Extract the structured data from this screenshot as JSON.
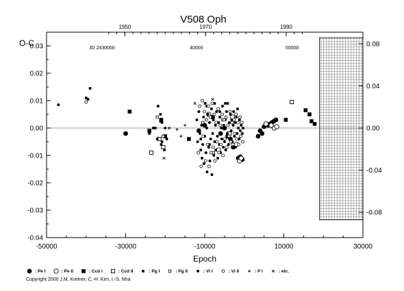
{
  "chart_data": {
    "type": "scatter",
    "title": "V508  Oph",
    "ylabel": "O-C",
    "xlabel": "Epoch",
    "xlim": [
      -50000,
      30000
    ],
    "ylim": [
      -0.04,
      0.035
    ],
    "x_ticks": [
      "-50000",
      "-30000",
      "-10000",
      "10000",
      "30000"
    ],
    "y_ticks": [
      "0.03",
      "0.02",
      "0.01",
      "0.00",
      "-0.01",
      "-0.02",
      "-0.03",
      "-0.04"
    ],
    "top_year_ticks": [
      {
        "label": "1950",
        "epoch": -30200
      },
      {
        "label": "1970",
        "epoch": -9800
      },
      {
        "label": "1990",
        "epoch": 10600
      }
    ],
    "top_jd_ticks": [
      {
        "label": "JD 2430000",
        "epoch": -36000
      },
      {
        "label": "40000",
        "epoch": -12100
      },
      {
        "label": "50000",
        "epoch": 12100
      }
    ],
    "right_axis": {
      "scale_factor": 2.6,
      "ticks": [
        "0.08",
        "0.04",
        "0.00",
        "-0.04",
        "-0.08"
      ]
    },
    "future_region": {
      "from_epoch": 19000,
      "to_epoch": 30000
    },
    "series": [
      {
        "name": "Pe I",
        "symbol": "filled-circle-large",
        "points": [
          [
            -30000,
            -0.002
          ],
          [
            -1500,
            -0.011
          ],
          [
            -1000,
            -0.0105
          ],
          [
            -500,
            -0.0115
          ],
          [
            -2800,
            -0.007
          ],
          [
            -3500,
            -0.004
          ],
          [
            4000,
            -0.001
          ],
          [
            4500,
            -0.002
          ],
          [
            5000,
            0.0005
          ],
          [
            6000,
            0.001
          ],
          [
            6500,
            0.0015
          ],
          [
            7000,
            0.002
          ],
          [
            7500,
            0.0025
          ],
          [
            8000,
            0.003
          ],
          [
            -6000,
            -0.002
          ],
          [
            -8000,
            0.004
          ],
          [
            -10000,
            0.001
          ],
          [
            -5000,
            0.0
          ],
          [
            -4200,
            -0.003
          ],
          [
            -11500,
            -0.001
          ],
          [
            3500,
            -0.003
          ]
        ]
      },
      {
        "name": "Pe II",
        "symbol": "open-circle-large",
        "points": [
          [
            -1200,
            -0.012
          ],
          [
            -800,
            -0.011
          ],
          [
            -2000,
            -0.006
          ],
          [
            5500,
            0.0015
          ],
          [
            6800,
            0.001
          ],
          [
            7600,
            0.0
          ],
          [
            8200,
            0.0005
          ],
          [
            -3000,
            0.004
          ],
          [
            -6500,
            -0.008
          ],
          [
            -9000,
            0.005
          ]
        ]
      },
      {
        "name": "Ccd I",
        "symbol": "filled-square",
        "points": [
          [
            -29000,
            0.006
          ],
          [
            -24000,
            -0.001
          ],
          [
            -21000,
            0.003
          ],
          [
            -20000,
            -0.003
          ],
          [
            -14000,
            -0.004
          ],
          [
            10500,
            0.003
          ],
          [
            15500,
            0.0065
          ],
          [
            17000,
            0.0025
          ],
          [
            17800,
            0.0015
          ],
          [
            16500,
            0.005
          ]
        ]
      },
      {
        "name": "Ccd II",
        "symbol": "open-square",
        "points": [
          [
            -23500,
            -0.009
          ],
          [
            -21500,
            -0.004
          ],
          [
            -20500,
            -0.007
          ],
          [
            12000,
            0.0095
          ],
          [
            -3800,
            -0.002
          ]
        ]
      },
      {
        "name": "Pg I",
        "symbol": "filled-square-small",
        "points": [
          [
            -40000,
            0.011
          ],
          [
            -39000,
            0.0145
          ],
          [
            -22500,
            0.0
          ],
          [
            -21800,
            0.008
          ],
          [
            -21200,
            0.005
          ],
          [
            -20800,
            0.002
          ],
          [
            -21000,
            -0.006
          ],
          [
            -20200,
            -0.008
          ],
          [
            -11000,
            -0.004
          ],
          [
            -9500,
            0.008
          ],
          [
            -8800,
            -0.006
          ],
          [
            -7500,
            0.009
          ],
          [
            -6200,
            0.006
          ],
          [
            -4800,
            0.009
          ]
        ]
      },
      {
        "name": "Pg II",
        "symbol": "open-square-small",
        "points": [
          [
            -22000,
            0.004
          ],
          [
            -20500,
            -0.003
          ],
          [
            -10500,
            0.002
          ],
          [
            -7800,
            -0.009
          ],
          [
            -5500,
            0.003
          ]
        ]
      },
      {
        "name": "Vi I",
        "symbol": "filled-circle-small",
        "points": [
          [
            -47000,
            0.0085
          ],
          [
            -39500,
            0.0105
          ],
          [
            -24000,
            -0.002
          ],
          [
            -23000,
            0.0
          ],
          [
            -22000,
            -0.004
          ],
          [
            -21200,
            0.0025
          ],
          [
            -20800,
            -0.005
          ],
          [
            -20000,
            0.0
          ],
          [
            -19600,
            -0.004
          ],
          [
            -12000,
            0.003
          ],
          [
            -11800,
            -0.005
          ],
          [
            -11500,
            0.006
          ],
          [
            -11200,
            -0.002
          ],
          [
            -11000,
            -0.008
          ],
          [
            -10800,
            0.001
          ],
          [
            -10700,
            -0.011
          ],
          [
            -10500,
            -0.006
          ],
          [
            -10300,
            0.004
          ],
          [
            -10200,
            -0.013
          ],
          [
            -10000,
            -0.003
          ],
          [
            -9900,
            0.009
          ],
          [
            -9700,
            -0.009
          ],
          [
            -9500,
            0.0
          ],
          [
            -9400,
            -0.016
          ],
          [
            -9200,
            0.005
          ],
          [
            -9000,
            -0.007
          ],
          [
            -8800,
            0.002
          ],
          [
            -8700,
            -0.012
          ],
          [
            -8500,
            -0.004
          ],
          [
            -8300,
            0.007
          ],
          [
            -8200,
            -0.017
          ],
          [
            -8000,
            -0.002
          ],
          [
            -7800,
            0.003
          ],
          [
            -7700,
            -0.01
          ],
          [
            -7500,
            -0.005
          ],
          [
            -7300,
            0.001
          ],
          [
            -7200,
            -0.008
          ],
          [
            -7000,
            0.006
          ],
          [
            -6800,
            -0.003
          ],
          [
            -6700,
            -0.011
          ],
          [
            -6500,
            0.002
          ],
          [
            -6300,
            -0.006
          ],
          [
            -6200,
            0.004
          ],
          [
            -6000,
            -0.009
          ],
          [
            -5800,
            0.0
          ],
          [
            -5700,
            -0.004
          ],
          [
            -5500,
            0.008
          ],
          [
            -5300,
            -0.007
          ],
          [
            -5200,
            0.001
          ],
          [
            -5000,
            -0.005
          ],
          [
            -4800,
            0.003
          ],
          [
            -4700,
            -0.008
          ],
          [
            -4500,
            0.006
          ],
          [
            -4300,
            -0.002
          ],
          [
            -4200,
            0.009
          ],
          [
            -4000,
            -0.006
          ],
          [
            -3800,
            0.002
          ],
          [
            -3700,
            -0.004
          ],
          [
            -3500,
            0.005
          ],
          [
            -3300,
            -0.001
          ],
          [
            -3200,
            0.003
          ],
          [
            -3000,
            -0.005
          ],
          [
            -2800,
            0.001
          ],
          [
            -2700,
            0.006
          ],
          [
            -2500,
            -0.003
          ],
          [
            -2300,
            0.002
          ],
          [
            -2200,
            -0.007
          ],
          [
            -2000,
            0.004
          ],
          [
            -1800,
            -0.002
          ],
          [
            -1700,
            0.007
          ],
          [
            -1500,
            0.0
          ],
          [
            -1300,
            -0.004
          ],
          [
            -1200,
            0.003
          ],
          [
            -1000,
            -0.001
          ],
          [
            -800,
            0.001
          ],
          [
            -500,
            -0.002
          ],
          [
            -300,
            0.0
          ]
        ]
      },
      {
        "name": "Vi II",
        "symbol": "open-circle-small",
        "points": [
          [
            -40000,
            0.0095
          ],
          [
            -11600,
            -0.009
          ],
          [
            -11300,
            0.008
          ],
          [
            -10900,
            -0.014
          ],
          [
            -10600,
            0.01
          ],
          [
            -10400,
            -0.003
          ],
          [
            -10100,
            0.006
          ],
          [
            -9800,
            -0.012
          ],
          [
            -9600,
            0.003
          ],
          [
            -9300,
            -0.006
          ],
          [
            -9100,
            0.008
          ],
          [
            -8900,
            -0.014
          ],
          [
            -8600,
            0.004
          ],
          [
            -8400,
            -0.009
          ],
          [
            -8100,
            0.009
          ],
          [
            -7900,
            -0.007
          ],
          [
            -7600,
            0.005
          ],
          [
            -7400,
            -0.012
          ],
          [
            -7100,
            0.002
          ],
          [
            -6900,
            -0.005
          ],
          [
            -6600,
            0.007
          ],
          [
            -6400,
            -0.009
          ],
          [
            -6100,
            0.001
          ],
          [
            -5900,
            -0.006
          ],
          [
            -5600,
            0.005
          ],
          [
            -5400,
            -0.01
          ],
          [
            -5100,
            0.003
          ],
          [
            -4900,
            -0.004
          ],
          [
            -4600,
            0.004
          ],
          [
            -4400,
            -0.007
          ],
          [
            -4100,
            0.001
          ],
          [
            -3900,
            -0.003
          ],
          [
            -3600,
            0.006
          ],
          [
            -3400,
            -0.005
          ],
          [
            -3100,
            0.002
          ],
          [
            -2900,
            -0.006
          ],
          [
            -2600,
            0.003
          ],
          [
            -2400,
            -0.002
          ],
          [
            -2100,
            0.005
          ],
          [
            -1900,
            -0.004
          ],
          [
            -1600,
            0.002
          ],
          [
            -1400,
            -0.006
          ],
          [
            -1100,
            0.004
          ],
          [
            -900,
            -0.003
          ],
          [
            -600,
            0.002
          ],
          [
            -400,
            -0.005
          ]
        ]
      },
      {
        "name": "P I",
        "symbol": "plus",
        "points": [
          [
            -17000,
            -0.0005
          ],
          [
            -16000,
            -0.003
          ],
          [
            -15000,
            0.001
          ]
        ]
      },
      {
        "name": "etc.",
        "symbol": "cross",
        "points": [
          [
            -20300,
            -0.011
          ],
          [
            -12500,
            0.009
          ],
          [
            -8000,
            0.0105
          ],
          [
            -19000,
            0.0
          ]
        ]
      }
    ]
  },
  "legend": [
    {
      "label": ": Pe I",
      "symbol": "filled-circle-large"
    },
    {
      "label": ": Pe II",
      "symbol": "open-circle-large"
    },
    {
      "label": ": Ccd I",
      "symbol": "filled-square"
    },
    {
      "label": ": Ccd II",
      "symbol": "open-square"
    },
    {
      "label": ": Pg I",
      "symbol": "filled-square-small"
    },
    {
      "label": ": Pg II",
      "symbol": "open-square-small"
    },
    {
      "label": ": Vi I",
      "symbol": "filled-circle-small"
    },
    {
      "label": ": Vi II",
      "symbol": "open-circle-small"
    },
    {
      "label": ": P I",
      "symbol": "plus"
    },
    {
      "label": ": etc.",
      "symbol": "cross"
    }
  ],
  "copyright": "Copyright 2000 J.M. Kreiner, C.-H. Kim, I.-S. Nha"
}
